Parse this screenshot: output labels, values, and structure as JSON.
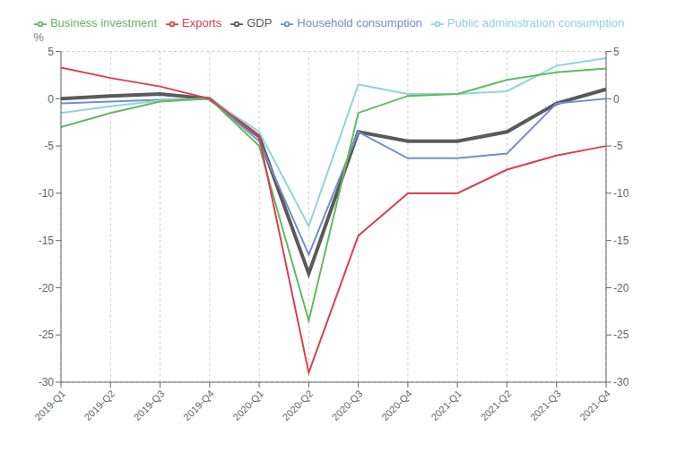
{
  "chart_data": {
    "type": "line",
    "ylabel": "%",
    "categories": [
      "2019-Q1",
      "2019-Q2",
      "2019-Q3",
      "2019-Q4",
      "2020-Q1",
      "2020-Q2",
      "2020-Q3",
      "2020-Q4",
      "2021-Q1",
      "2021-Q2",
      "2021-Q3",
      "2021-Q4"
    ],
    "series": [
      {
        "name": "GDP",
        "color": "#5a5a5a",
        "values": [
          0.0,
          0.3,
          0.5,
          0.0,
          -4.0,
          -18.5,
          -3.5,
          -4.5,
          -4.5,
          -3.5,
          -0.5,
          1.0
        ]
      },
      {
        "name": "Household consumption",
        "color": "#7090cc",
        "values": [
          -0.5,
          -0.3,
          -0.1,
          0.0,
          -4.5,
          -16.5,
          -3.5,
          -6.3,
          -6.3,
          -5.8,
          -0.5,
          0.0
        ]
      },
      {
        "name": "Public administration consumption",
        "color": "#90d5d8",
        "values": [
          -1.5,
          -0.8,
          -0.2,
          0.0,
          -3.5,
          -13.5,
          1.5,
          0.5,
          0.5,
          0.8,
          3.5,
          4.3
        ]
      },
      {
        "name": "Business investment",
        "color": "#60bb60",
        "values": [
          -3.0,
          -1.5,
          -0.3,
          0.0,
          -5.0,
          -23.5,
          -1.5,
          0.3,
          0.5,
          2.0,
          2.8,
          3.2
        ]
      },
      {
        "name": "Exports",
        "color": "#d94050",
        "values": [
          3.3,
          2.2,
          1.3,
          0.0,
          -4.0,
          -29.0,
          -14.5,
          -10.0,
          -10.0,
          -7.5,
          -6.0,
          -5.0
        ]
      }
    ],
    "ylim": [
      -30,
      5
    ],
    "yticks": [
      5,
      0,
      -5,
      -10,
      -15,
      -20,
      -25,
      -30
    ],
    "y2lim": [
      -30,
      5
    ],
    "y2ticks": [
      5,
      0,
      -5,
      -10,
      -15,
      -20,
      -25,
      -30
    ],
    "grid": true,
    "legend": "top"
  }
}
